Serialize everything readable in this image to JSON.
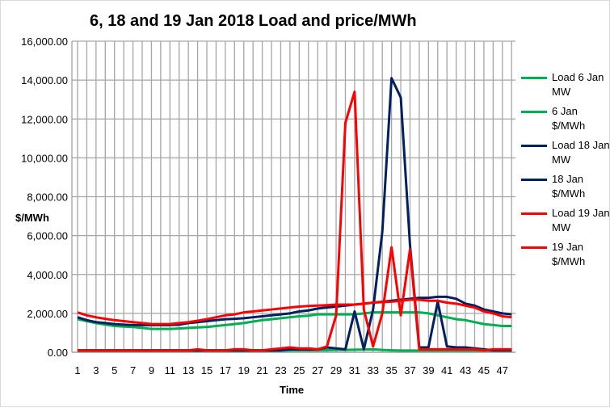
{
  "chart_data": {
    "type": "line",
    "title": "6, 18 and 19 Jan 2018 Load and price/MWh",
    "xlabel": "Time",
    "ylabel": "$/MWh",
    "ylim": [
      0,
      16000
    ],
    "yticks": [
      "0.00",
      "2,000.00",
      "4,000.00",
      "6,000.00",
      "8,000.00",
      "10,000.00",
      "12,000.00",
      "14,000.00",
      "16,000.00"
    ],
    "x": [
      1,
      2,
      3,
      4,
      5,
      6,
      7,
      8,
      9,
      10,
      11,
      12,
      13,
      14,
      15,
      16,
      17,
      18,
      19,
      20,
      21,
      22,
      23,
      24,
      25,
      26,
      27,
      28,
      29,
      30,
      31,
      32,
      33,
      34,
      35,
      36,
      37,
      38,
      39,
      40,
      41,
      42,
      43,
      44,
      45,
      46,
      47,
      48
    ],
    "xticklabels": [
      "1",
      "3",
      "5",
      "7",
      "9",
      "11",
      "13",
      "15",
      "17",
      "19",
      "21",
      "23",
      "25",
      "27",
      "29",
      "31",
      "33",
      "35",
      "37",
      "39",
      "41",
      "43",
      "45",
      "47"
    ],
    "grid": true,
    "legend": "right",
    "series": [
      {
        "name": "Load 6 Jan MW",
        "color": "#00b050",
        "values": [
          1700,
          1600,
          1500,
          1420,
          1350,
          1320,
          1300,
          1250,
          1200,
          1200,
          1200,
          1220,
          1250,
          1280,
          1300,
          1350,
          1400,
          1450,
          1500,
          1580,
          1650,
          1700,
          1750,
          1800,
          1850,
          1880,
          1950,
          1950,
          1950,
          1950,
          1950,
          2000,
          2050,
          2050,
          2050,
          2050,
          2050,
          2050,
          2000,
          1900,
          1800,
          1700,
          1650,
          1550,
          1450,
          1400,
          1350,
          1350
        ]
      },
      {
        "name": "6 Jan $/MWh",
        "color": "#00b050",
        "values": [
          80,
          80,
          80,
          80,
          80,
          80,
          80,
          80,
          80,
          80,
          80,
          80,
          80,
          80,
          80,
          80,
          80,
          80,
          80,
          80,
          80,
          80,
          90,
          100,
          100,
          100,
          100,
          110,
          120,
          120,
          130,
          140,
          150,
          120,
          100,
          90,
          90,
          90,
          90,
          90,
          90,
          90,
          90,
          90,
          90,
          90,
          90,
          90
        ]
      },
      {
        "name": "Load 18 Jan MW",
        "color": "#002060",
        "values": [
          1800,
          1650,
          1550,
          1500,
          1450,
          1420,
          1400,
          1400,
          1400,
          1400,
          1400,
          1420,
          1500,
          1550,
          1600,
          1650,
          1700,
          1720,
          1750,
          1800,
          1850,
          1900,
          1950,
          2000,
          2100,
          2150,
          2250,
          2300,
          2350,
          2400,
          2450,
          2500,
          2550,
          2600,
          2650,
          2700,
          2750,
          2800,
          2800,
          2850,
          2850,
          2750,
          2500,
          2400,
          2200,
          2100,
          2000,
          1950
        ]
      },
      {
        "name": "18 Jan $/MWh",
        "color": "#002060",
        "values": [
          100,
          100,
          100,
          100,
          100,
          100,
          100,
          100,
          100,
          100,
          100,
          100,
          100,
          100,
          100,
          100,
          100,
          100,
          100,
          100,
          100,
          100,
          100,
          150,
          150,
          150,
          150,
          250,
          200,
          150,
          2100,
          150,
          2200,
          6200,
          14100,
          13100,
          5500,
          250,
          250,
          2600,
          300,
          250,
          250,
          200,
          150,
          100,
          100,
          100
        ]
      },
      {
        "name": "Load 19 Jan MW",
        "color": "#ff0000",
        "values": [
          2050,
          1900,
          1800,
          1720,
          1650,
          1600,
          1550,
          1500,
          1450,
          1450,
          1450,
          1500,
          1550,
          1620,
          1700,
          1800,
          1900,
          1950,
          2050,
          2100,
          2150,
          2200,
          2250,
          2300,
          2350,
          2380,
          2400,
          2420,
          2450,
          2450,
          2450,
          2500,
          2550,
          2580,
          2600,
          2650,
          2700,
          2700,
          2650,
          2650,
          2550,
          2500,
          2400,
          2300,
          2100,
          2000,
          1850,
          1800
        ]
      },
      {
        "name": "19 Jan $/MWh",
        "color": "#ff0000",
        "values": [
          100,
          100,
          100,
          100,
          100,
          100,
          100,
          100,
          100,
          100,
          100,
          100,
          100,
          150,
          100,
          100,
          100,
          150,
          150,
          100,
          100,
          150,
          200,
          250,
          200,
          200,
          150,
          300,
          1900,
          11800,
          13400,
          2200,
          300,
          2000,
          5400,
          1900,
          5300,
          150,
          150,
          150,
          150,
          150,
          150,
          150,
          100,
          150,
          150,
          150
        ]
      }
    ]
  }
}
